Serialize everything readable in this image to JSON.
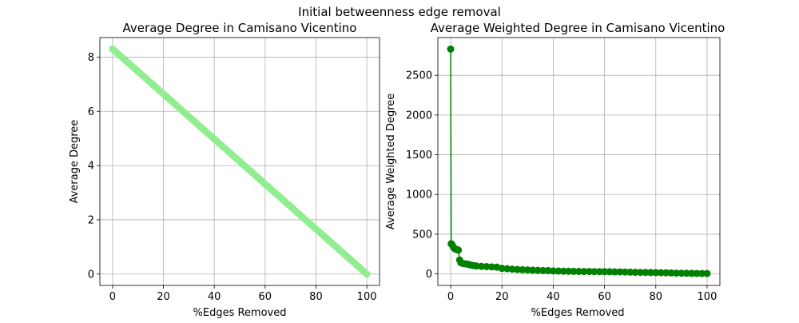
{
  "figure": {
    "suptitle": "Initial betweenness edge removal"
  },
  "chart_data": [
    {
      "type": "line",
      "title": "Average Degree in Camisano Vicentino",
      "xlabel": "%Edges Removed",
      "ylabel": "Average Degree",
      "xlim": [
        -5,
        105
      ],
      "ylim": [
        -0.42,
        8.72
      ],
      "xticks": [
        0,
        20,
        40,
        60,
        80,
        100
      ],
      "yticks": [
        0,
        2,
        4,
        6,
        8
      ],
      "grid": true,
      "series": [
        {
          "color": "#90ee90",
          "marker": "circle",
          "x_start": 0,
          "x_end": 100,
          "x_step": 1,
          "y_start": 8.3,
          "y_end": 0.0
        }
      ]
    },
    {
      "type": "line",
      "title": "Average Weighted Degree in Camisano Vicentino",
      "xlabel": "%Edges Removed",
      "ylabel": "Average Weighted Degree",
      "xlim": [
        -5,
        105
      ],
      "ylim": [
        -145,
        2975
      ],
      "xticks": [
        0,
        20,
        40,
        60,
        80,
        100
      ],
      "yticks": [
        0,
        500,
        1000,
        1500,
        2000,
        2500
      ],
      "grid": true,
      "series": [
        {
          "color": "#008000",
          "marker": "circle",
          "x": [
            0,
            0.2,
            0.5,
            1,
            1.5,
            2,
            2.5,
            3,
            3.5,
            4,
            5,
            6,
            7,
            8,
            9,
            10,
            12,
            14,
            16,
            18,
            20,
            22,
            24,
            26,
            28,
            30,
            32,
            34,
            36,
            38,
            40,
            42,
            44,
            46,
            48,
            50,
            52,
            54,
            56,
            58,
            60,
            62,
            64,
            66,
            68,
            70,
            72,
            74,
            76,
            78,
            80,
            82,
            84,
            86,
            88,
            90,
            92,
            94,
            96,
            98,
            100
          ],
          "y": [
            2830,
            380,
            370,
            340,
            320,
            310,
            305,
            300,
            175,
            140,
            130,
            125,
            120,
            110,
            105,
            100,
            95,
            92,
            88,
            85,
            70,
            65,
            60,
            56,
            52,
            50,
            47,
            45,
            43,
            42,
            38,
            36,
            34,
            33,
            32,
            31,
            30,
            30,
            29,
            28,
            28,
            27,
            26,
            25,
            24,
            22,
            20,
            19,
            18,
            17,
            16,
            15,
            14,
            12,
            10,
            9,
            8,
            7,
            6,
            5,
            5
          ]
        }
      ]
    }
  ]
}
